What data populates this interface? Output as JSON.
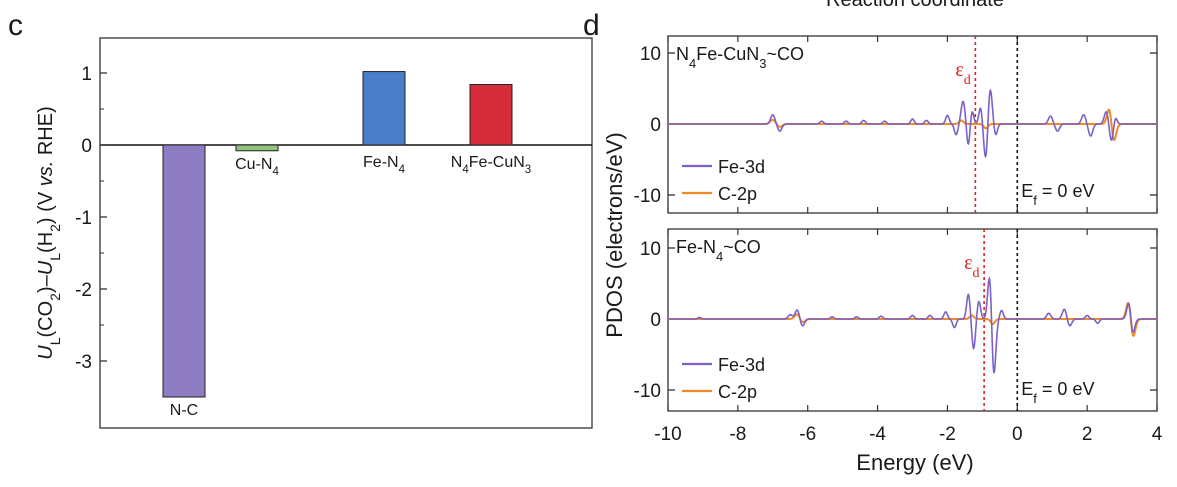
{
  "top_cut_text": "Reaction coordinate",
  "chart_data": [
    {
      "panel": "c",
      "type": "bar",
      "ylabel_parts": [
        "U",
        "L",
        "(CO",
        "2",
        ")–",
        "U",
        "L",
        "(H",
        "2",
        ") (V ",
        "vs.",
        " RHE)"
      ],
      "ylim": [
        -3.7,
        1.4
      ],
      "yticks": [
        1,
        0,
        -1,
        -2,
        -3
      ],
      "ytick_labels": [
        "1",
        "0",
        "-1",
        "-2",
        "-3"
      ],
      "bars": [
        {
          "label": "N-C",
          "value": -3.5,
          "color": "#8e7cc3"
        },
        {
          "label": "Cu-N4",
          "value": -0.08,
          "color": "#93c47d"
        },
        {
          "label": "Fe-N4",
          "value": 1.02,
          "color": "#4a7ec8"
        },
        {
          "label": "N4Fe-CuN3",
          "value": 0.84,
          "color": "#d62c3c"
        }
      ]
    },
    {
      "panel": "d",
      "type": "line",
      "ylabel": "PDOS (electrons/eV)",
      "xlabel": "Energy (eV)",
      "xlim": [
        -10,
        4
      ],
      "xticks": [
        -10,
        -8,
        -6,
        -4,
        -2,
        0,
        2,
        4
      ],
      "xtick_labels": [
        "-10",
        "-8",
        "-6",
        "-4",
        "-2",
        "0",
        "2",
        "4"
      ],
      "ylim": [
        -12,
        12
      ],
      "yticks": [
        10,
        0,
        -10
      ],
      "ytick_labels": [
        "10",
        "0",
        "-10"
      ],
      "series_colors": {
        "Fe-3d": "#7b61c9",
        "C-2p": "#f08a24"
      },
      "legend": [
        "Fe-3d",
        "C-2p"
      ],
      "fermi_label": "Ef = 0 eV",
      "eps_label": "εd",
      "subplots": [
        {
          "title": "N4Fe-CuN3~CO",
          "eps_d": -1.2,
          "fermi": 0,
          "peaks_fe3d": [
            {
              "e": -7.0,
              "a": 1.3,
              "w": 0.06
            },
            {
              "e": -6.8,
              "a": -1.0,
              "w": 0.06
            },
            {
              "e": -5.6,
              "a": 0.4,
              "w": 0.05
            },
            {
              "e": -4.9,
              "a": 0.4,
              "w": 0.05
            },
            {
              "e": -4.4,
              "a": 0.5,
              "w": 0.05
            },
            {
              "e": -3.8,
              "a": 0.4,
              "w": 0.05
            },
            {
              "e": -3.0,
              "a": 0.7,
              "w": 0.05
            },
            {
              "e": -2.6,
              "a": 0.5,
              "w": 0.05
            },
            {
              "e": -2.0,
              "a": 1.2,
              "w": 0.05
            },
            {
              "e": -1.75,
              "a": -1.5,
              "w": 0.05
            },
            {
              "e": -1.55,
              "a": 3.2,
              "w": 0.06
            },
            {
              "e": -1.4,
              "a": -3.2,
              "w": 0.05
            },
            {
              "e": -1.3,
              "a": 2.0,
              "w": 0.05
            },
            {
              "e": -1.05,
              "a": 2.4,
              "w": 0.05
            },
            {
              "e": -0.9,
              "a": -5.2,
              "w": 0.06
            },
            {
              "e": -0.78,
              "a": 5.3,
              "w": 0.06
            },
            {
              "e": -0.62,
              "a": -1.6,
              "w": 0.05
            },
            {
              "e": 0.95,
              "a": 1.1,
              "w": 0.06
            },
            {
              "e": 1.15,
              "a": -1.0,
              "w": 0.06
            },
            {
              "e": 1.9,
              "a": 1.3,
              "w": 0.06
            },
            {
              "e": 2.1,
              "a": -1.7,
              "w": 0.06
            },
            {
              "e": 2.55,
              "a": 1.8,
              "w": 0.06
            },
            {
              "e": 2.7,
              "a": -2.5,
              "w": 0.06
            },
            {
              "e": 2.8,
              "a": 1.2,
              "w": 0.05
            }
          ],
          "peaks_c2p": [
            {
              "e": -7.0,
              "a": 0.6,
              "w": 0.07
            },
            {
              "e": -6.8,
              "a": -0.4,
              "w": 0.07
            },
            {
              "e": -1.6,
              "a": 0.5,
              "w": 0.06
            },
            {
              "e": -0.9,
              "a": -0.6,
              "w": 0.06
            },
            {
              "e": 2.65,
              "a": 2.8,
              "w": 0.07
            },
            {
              "e": 2.75,
              "a": -3.0,
              "w": 0.07
            }
          ]
        },
        {
          "title": "Fe-N4~CO",
          "eps_d": -0.95,
          "fermi": 0,
          "peaks_fe3d": [
            {
              "e": -9.1,
              "a": 0.2,
              "w": 0.05
            },
            {
              "e": -6.5,
              "a": 0.6,
              "w": 0.06
            },
            {
              "e": -6.3,
              "a": 1.3,
              "w": 0.06
            },
            {
              "e": -6.15,
              "a": -1.0,
              "w": 0.06
            },
            {
              "e": -5.3,
              "a": 0.3,
              "w": 0.05
            },
            {
              "e": -4.6,
              "a": 0.3,
              "w": 0.05
            },
            {
              "e": -3.9,
              "a": 0.4,
              "w": 0.05
            },
            {
              "e": -3.0,
              "a": 0.5,
              "w": 0.05
            },
            {
              "e": -2.5,
              "a": 0.5,
              "w": 0.05
            },
            {
              "e": -2.05,
              "a": 1.0,
              "w": 0.05
            },
            {
              "e": -1.8,
              "a": -1.2,
              "w": 0.05
            },
            {
              "e": -1.4,
              "a": 3.5,
              "w": 0.05
            },
            {
              "e": -1.25,
              "a": -4.2,
              "w": 0.05
            },
            {
              "e": -1.1,
              "a": 2.5,
              "w": 0.05
            },
            {
              "e": -0.78,
              "a": 7.3,
              "w": 0.06
            },
            {
              "e": -0.68,
              "a": -9.0,
              "w": 0.06
            },
            {
              "e": -0.45,
              "a": 1.2,
              "w": 0.05
            },
            {
              "e": 0.9,
              "a": 0.8,
              "w": 0.06
            },
            {
              "e": 1.35,
              "a": 1.4,
              "w": 0.06
            },
            {
              "e": 1.5,
              "a": -1.0,
              "w": 0.06
            },
            {
              "e": 2.0,
              "a": 0.5,
              "w": 0.05
            },
            {
              "e": 2.3,
              "a": -0.6,
              "w": 0.05
            },
            {
              "e": 3.2,
              "a": 2.6,
              "w": 0.06
            },
            {
              "e": 3.3,
              "a": -2.3,
              "w": 0.06
            }
          ],
          "peaks_c2p": [
            {
              "e": -6.3,
              "a": 0.7,
              "w": 0.07
            },
            {
              "e": -6.15,
              "a": -0.5,
              "w": 0.07
            },
            {
              "e": -1.3,
              "a": 0.5,
              "w": 0.06
            },
            {
              "e": -0.7,
              "a": -0.7,
              "w": 0.06
            },
            {
              "e": 3.2,
              "a": 3.1,
              "w": 0.07
            },
            {
              "e": 3.3,
              "a": -3.2,
              "w": 0.07
            }
          ]
        }
      ]
    }
  ]
}
